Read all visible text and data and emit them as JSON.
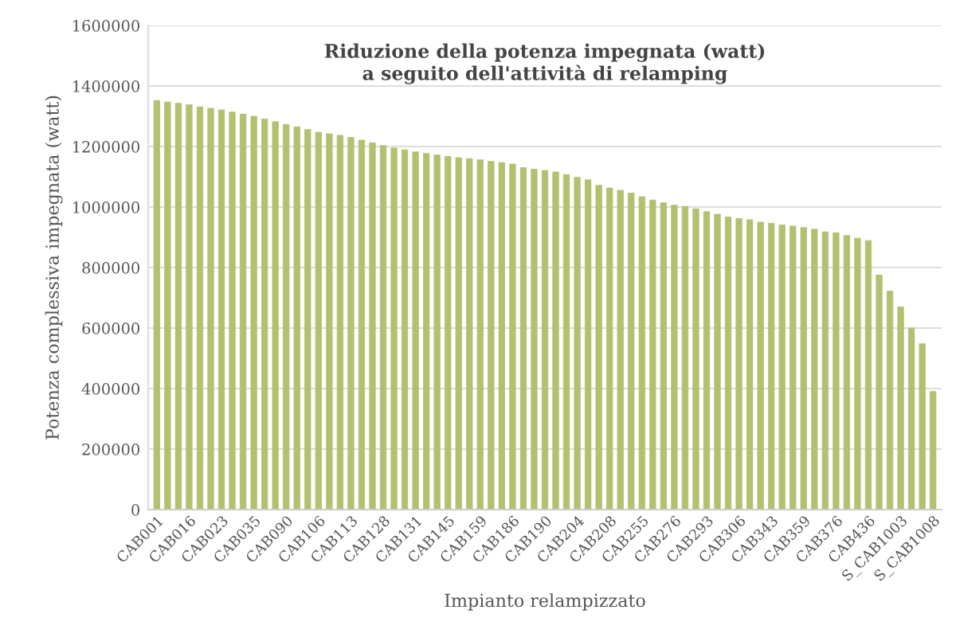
{
  "chart_data": {
    "type": "bar",
    "title": "Riduzione della potenza impegnata (watt)\na seguito dell'attività di relamping",
    "xlabel": "Impianto relampizzato",
    "ylabel": "Potenza complessiva impegnata (watt)",
    "categories": [
      "CAB001",
      null,
      null,
      "CAB016",
      null,
      null,
      "CAB023",
      null,
      null,
      "CAB035",
      null,
      null,
      "CAB090",
      null,
      null,
      "CAB106",
      null,
      null,
      "CAB113",
      null,
      null,
      "CAB128",
      null,
      null,
      "CAB131",
      null,
      null,
      "CAB145",
      null,
      null,
      "CAB159",
      null,
      null,
      "CAB186",
      null,
      null,
      "CAB190",
      null,
      null,
      "CAB204",
      null,
      null,
      "CAB208",
      null,
      null,
      "CAB255",
      null,
      null,
      "CAB276",
      null,
      null,
      "CAB293",
      null,
      null,
      "CAB306",
      null,
      null,
      "CAB343",
      null,
      null,
      "CAB359",
      null,
      null,
      "CAB376",
      null,
      null,
      "CAB436",
      null,
      null,
      "S_CAB1003",
      null,
      null,
      "S_CAB1008"
    ],
    "values": [
      1352000,
      1347000,
      1343000,
      1338000,
      1331000,
      1326000,
      1321000,
      1314000,
      1307000,
      1300000,
      1291000,
      1282000,
      1273000,
      1265000,
      1256000,
      1247000,
      1242000,
      1237000,
      1230000,
      1221000,
      1212000,
      1203000,
      1195000,
      1189000,
      1182000,
      1177000,
      1172000,
      1167000,
      1163000,
      1160000,
      1156000,
      1151000,
      1147000,
      1142000,
      1130000,
      1125000,
      1121000,
      1116000,
      1107000,
      1098000,
      1090000,
      1072000,
      1063000,
      1055000,
      1046000,
      1034000,
      1023000,
      1014000,
      1006000,
      1002000,
      994000,
      985000,
      976000,
      967000,
      962000,
      958000,
      950000,
      946000,
      941000,
      937000,
      932000,
      927000,
      918000,
      915000,
      906000,
      897000,
      889000,
      775000,
      722000,
      670000,
      600000,
      548000,
      390000
    ],
    "color": "#b4bf70",
    "ylim": [
      0,
      1600000
    ],
    "yticks": [
      0,
      200000,
      400000,
      600000,
      800000,
      1000000,
      1200000,
      1400000,
      1600000
    ],
    "grid": "y"
  }
}
